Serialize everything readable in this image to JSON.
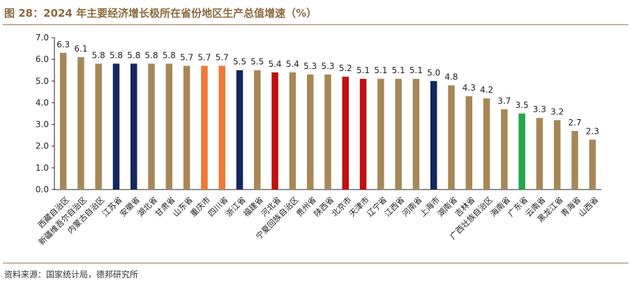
{
  "header": {
    "title": "图 28：2024 年主要经济增长极所在省份地区生产总值增速（%）"
  },
  "footer": {
    "source": "资料来源：国家统计局，德邦研究所"
  },
  "colors": {
    "default": "#a78758",
    "navy": "#13275e",
    "orange": "#ee7a36",
    "red": "#c01010",
    "green": "#22a84a",
    "rule": "#9b7a52"
  },
  "chart_data": {
    "type": "bar",
    "title": "",
    "xlabel": "",
    "ylabel": "",
    "ylim": [
      0,
      7
    ],
    "yticks": [
      "0.0",
      "1.0",
      "2.0",
      "3.0",
      "4.0",
      "5.0",
      "6.0",
      "7.0"
    ],
    "grid": false,
    "legend": "none",
    "categories": [
      "西藏自治区",
      "新疆维吾尔自治区",
      "内蒙古自治区",
      "江苏省",
      "安徽省",
      "湖北省",
      "甘肃省",
      "山东省",
      "重庆市",
      "四川省",
      "浙江省",
      "福建省",
      "河北省",
      "宁夏回族自治区",
      "贵州省",
      "陕西省",
      "北京市",
      "天津市",
      "辽宁省",
      "江西省",
      "河南省",
      "上海市",
      "湖南省",
      "吉林省",
      "广西壮族自治区",
      "海南省",
      "广东省",
      "云南省",
      "黑龙江省",
      "青海省",
      "山西省"
    ],
    "values": [
      6.3,
      6.1,
      5.8,
      5.8,
      5.8,
      5.8,
      5.8,
      5.7,
      5.7,
      5.7,
      5.5,
      5.5,
      5.4,
      5.4,
      5.3,
      5.3,
      5.2,
      5.1,
      5.1,
      5.1,
      5.1,
      5.0,
      4.8,
      4.3,
      4.2,
      3.7,
      3.5,
      3.3,
      3.2,
      2.7,
      2.3
    ],
    "value_labels": [
      "6.3",
      "6.1",
      "5.8",
      "5.8",
      "5.8",
      "5.8",
      "5.8",
      "5.7",
      "5.7",
      "5.7",
      "5.5",
      "5.5",
      "5.4",
      "5.4",
      "5.3",
      "5.3",
      "5.2",
      "5.1",
      "5.1",
      "5.1",
      "5.1",
      "5.0",
      "4.8",
      "4.3",
      "4.2",
      "3.7",
      "3.5",
      "3.3",
      "3.2",
      "2.7",
      "2.3"
    ],
    "bar_colors": [
      "default",
      "default",
      "default",
      "navy",
      "navy",
      "default",
      "default",
      "default",
      "orange",
      "orange",
      "navy",
      "default",
      "red",
      "default",
      "default",
      "default",
      "red",
      "red",
      "default",
      "default",
      "default",
      "navy",
      "default",
      "default",
      "default",
      "default",
      "green",
      "default",
      "default",
      "default",
      "default"
    ]
  }
}
